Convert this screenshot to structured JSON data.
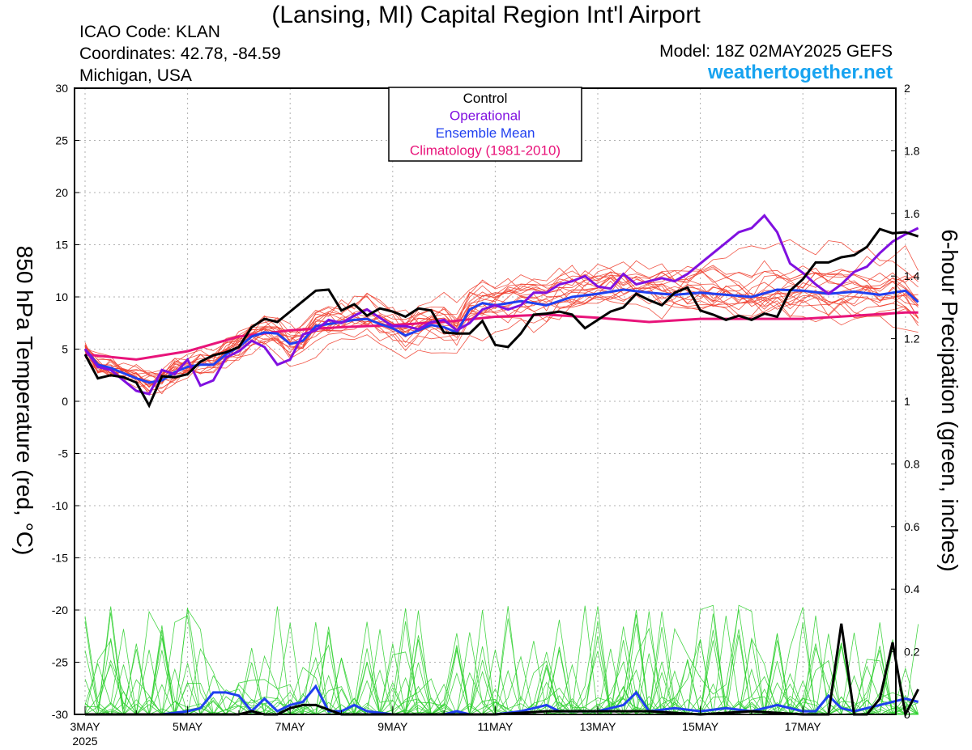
{
  "header": {
    "title": "(Lansing, MI) Capital Region Int'l Airport",
    "icao": "ICAO Code: KLAN",
    "coords": "Coordinates: 42.78, -84.59",
    "region": "Michigan, USA",
    "model": "Model: 18Z 02MAY2025 GEFS",
    "site": "weathertogether.net"
  },
  "legend": {
    "items": [
      {
        "label": "Control",
        "color": "#000000"
      },
      {
        "label": "Operational",
        "color": "#8010e0"
      },
      {
        "label": "Ensemble Mean",
        "color": "#2040f0"
      },
      {
        "label": "Climatology (1981-2010)",
        "color": "#e8147a"
      }
    ]
  },
  "colors": {
    "member_temp": "#f04030",
    "member_precip": "#30d030",
    "control": "#000000",
    "operational": "#8010e0",
    "mean": "#2040f0",
    "climatology": "#e8147a",
    "grid": "#b0b0b0"
  },
  "chart_data": {
    "type": "line",
    "xlabel": "",
    "ylabel_left": "850 hPa Temperature (red, °C)",
    "ylabel_right": "6-hour Precipation (green, inches)",
    "x_ticks": [
      "3MAY",
      "5MAY",
      "7MAY",
      "9MAY",
      "11MAY",
      "13MAY",
      "15MAY",
      "17MAY"
    ],
    "x_year": "2025",
    "y_ticks_left": [
      "30",
      "25",
      "20",
      "15",
      "10",
      "5",
      "0",
      "-5",
      "-10",
      "-15",
      "-20",
      "-25",
      "-30"
    ],
    "y_ticks_right": [
      "2",
      "1.8",
      "1.6",
      "1.4",
      "1.2",
      "1",
      "0.8",
      "0.6",
      "0.4",
      "0.2",
      "0"
    ],
    "ylim_left": [
      -30,
      30
    ],
    "ylim_right": [
      0,
      2
    ],
    "x_unit": "days since 00Z 03MAY2025, 6-hourly",
    "xlim": [
      0,
      16.25
    ],
    "grid": true,
    "temperature_series": {
      "control": {
        "x": [
          0,
          0.25,
          0.5,
          0.75,
          1.0,
          1.25,
          1.5,
          1.75,
          2.0,
          2.25,
          2.5,
          2.75,
          3.0,
          3.25,
          3.5,
          3.75,
          4.0,
          4.25,
          4.5,
          4.75,
          5.0,
          5.25,
          5.5,
          5.75,
          6.0,
          6.25,
          6.5,
          6.75,
          7.0,
          7.25,
          7.5,
          7.75,
          8.0,
          8.25,
          8.5,
          8.75,
          9.0,
          9.25,
          9.5,
          9.75,
          10.0,
          10.25,
          10.5,
          10.75,
          11.0,
          11.25,
          11.5,
          11.75,
          12.0,
          12.25,
          12.5,
          12.75,
          13.0,
          13.25,
          13.5,
          13.75,
          14.0,
          14.25,
          14.5,
          14.75,
          15.0,
          15.25,
          15.5,
          15.75,
          16.0,
          16.25
        ],
        "y": [
          4.5,
          2.2,
          2.5,
          2.3,
          1.8,
          -0.4,
          2.4,
          2.3,
          2.6,
          3.8,
          4.4,
          4.7,
          5.2,
          7.1,
          7.9,
          7.6,
          8.6,
          9.6,
          10.6,
          10.7,
          8.7,
          9.3,
          8.2,
          8.9,
          8.6,
          8.1,
          8.9,
          8.7,
          6.6,
          6.5,
          6.5,
          7.7,
          5.4,
          5.2,
          6.5,
          8.3,
          8.4,
          8.6,
          8.3,
          7.0,
          7.8,
          8.6,
          9.0,
          10.3,
          9.7,
          9.2,
          10.4,
          10.9,
          8.7,
          8.3,
          7.8,
          8.2,
          7.8,
          8.4,
          8.1,
          10.6,
          11.7,
          13.3,
          13.3,
          13.8,
          14.0,
          14.8,
          16.5,
          16.1,
          16.2,
          15.8
        ]
      },
      "operational": {
        "x": [
          0,
          0.25,
          0.5,
          0.75,
          1.0,
          1.25,
          1.5,
          1.75,
          2.0,
          2.25,
          2.5,
          2.75,
          3.0,
          3.25,
          3.5,
          3.75,
          4.0,
          4.25,
          4.5,
          4.75,
          5.0,
          5.25,
          5.5,
          5.75,
          6.0,
          6.25,
          6.5,
          6.75,
          7.0,
          7.25,
          7.5,
          7.75,
          8.0,
          8.25,
          8.5,
          8.75,
          9.0,
          9.25,
          9.5,
          9.75,
          10.0,
          10.25,
          10.5,
          10.75,
          11.0,
          11.25,
          11.5,
          11.75,
          12.0,
          12.25,
          12.5,
          12.75,
          13.0,
          13.25,
          13.5,
          13.75,
          14.0,
          14.25,
          14.5,
          14.75,
          15.0,
          15.25,
          15.5,
          15.75,
          16.0,
          16.25
        ],
        "y": [
          5.0,
          3.3,
          3.0,
          2.0,
          1.0,
          0.7,
          3.0,
          2.6,
          4.0,
          1.5,
          2.0,
          4.2,
          4.8,
          5.8,
          5.2,
          3.5,
          4.0,
          6.4,
          6.8,
          7.8,
          7.5,
          8.2,
          8.8,
          8.0,
          7.2,
          7.2,
          6.9,
          7.6,
          7.8,
          6.8,
          7.5,
          8.8,
          9.2,
          8.8,
          9.2,
          10.4,
          10.4,
          11.2,
          11.5,
          12.0,
          11.0,
          10.8,
          12.2,
          11.2,
          11.5,
          11.8,
          11.5,
          12.2,
          13.2,
          14.2,
          15.2,
          16.2,
          16.6,
          17.8,
          16.2,
          13.2,
          12.3,
          11.2,
          10.3,
          11.2,
          12.4,
          12.9,
          14.2,
          15.3,
          16.0,
          16.6
        ]
      },
      "mean": {
        "x": [
          0,
          0.25,
          0.5,
          0.75,
          1.0,
          1.25,
          1.5,
          1.75,
          2.0,
          2.25,
          2.5,
          2.75,
          3.0,
          3.25,
          3.5,
          3.75,
          4.0,
          4.25,
          4.5,
          4.75,
          5.0,
          5.25,
          5.5,
          5.75,
          6.0,
          6.25,
          6.5,
          6.75,
          7.0,
          7.25,
          7.5,
          7.75,
          8.0,
          8.5,
          9.0,
          9.5,
          10.0,
          10.5,
          11.0,
          11.5,
          12.0,
          12.5,
          13.0,
          13.5,
          14.0,
          14.5,
          15.0,
          15.5,
          16.0,
          16.25
        ],
        "y": [
          5.0,
          3.5,
          3.2,
          2.7,
          2.2,
          1.8,
          2.0,
          2.8,
          3.3,
          3.5,
          3.5,
          4.5,
          5.2,
          6.2,
          6.6,
          6.5,
          5.5,
          5.8,
          7.2,
          7.4,
          7.6,
          7.8,
          7.9,
          7.4,
          7.0,
          6.3,
          6.8,
          7.3,
          7.1,
          6.6,
          8.8,
          9.4,
          9.2,
          9.6,
          9.2,
          10.0,
          10.3,
          10.7,
          10.4,
          10.2,
          10.4,
          10.2,
          10.0,
          10.7,
          10.6,
          10.3,
          10.5,
          10.2,
          10.6,
          9.5
        ]
      },
      "climatology": {
        "x": [
          0,
          1,
          2,
          3,
          4,
          5,
          6,
          7,
          8,
          9,
          10,
          11,
          12,
          13,
          14,
          15,
          16,
          16.25
        ],
        "y": [
          4.5,
          4.0,
          4.8,
          6.2,
          6.8,
          7.1,
          7.3,
          7.6,
          8.1,
          8.3,
          8.0,
          7.6,
          7.9,
          7.9,
          7.9,
          8.2,
          8.5,
          8.5
        ]
      }
    },
    "precipitation_series": {
      "control": {
        "x": [
          0,
          0.5,
          1,
          1.5,
          2,
          2.5,
          3,
          3.25,
          3.5,
          3.75,
          4.0,
          4.25,
          4.5,
          5,
          6,
          7,
          8,
          9,
          10,
          11,
          12,
          13,
          14,
          14.5,
          14.75,
          15.0,
          15.25,
          15.5,
          15.75,
          16.0,
          16.25
        ],
        "y": [
          0,
          0,
          0,
          0,
          0,
          0,
          0,
          0.01,
          0,
          0,
          0.02,
          0.03,
          0.03,
          0,
          0,
          0,
          0,
          0.01,
          0.01,
          0.01,
          0,
          0.01,
          0,
          0,
          0.29,
          0,
          0,
          0.05,
          0.23,
          0,
          0.08
        ]
      },
      "mean": {
        "x": [
          0,
          0.5,
          1,
          1.5,
          2,
          2.25,
          2.5,
          2.75,
          3.0,
          3.25,
          3.5,
          3.75,
          4.0,
          4.25,
          4.5,
          4.75,
          5.0,
          5.25,
          5.5,
          6.0,
          6.5,
          7.0,
          7.25,
          7.5,
          8.0,
          8.5,
          9.0,
          9.25,
          9.5,
          10.0,
          10.5,
          10.75,
          11.0,
          11.5,
          12.0,
          12.5,
          13.0,
          13.5,
          14.0,
          14.25,
          14.5,
          14.75,
          15.0,
          15.5,
          16.0,
          16.25
        ],
        "y": [
          0,
          0,
          0,
          0,
          0.01,
          0.02,
          0.07,
          0.07,
          0.06,
          0.01,
          0.05,
          0.01,
          0.03,
          0.04,
          0.09,
          0.01,
          0.01,
          0.03,
          0.01,
          0,
          0,
          0,
          0.01,
          0,
          0,
          0.01,
          0.03,
          0.01,
          0.01,
          0.01,
          0.03,
          0.07,
          0.01,
          0.02,
          0.01,
          0.02,
          0.01,
          0.03,
          0.01,
          0.01,
          0.06,
          0.02,
          0.01,
          0.03,
          0.05,
          0.04
        ]
      }
    }
  }
}
